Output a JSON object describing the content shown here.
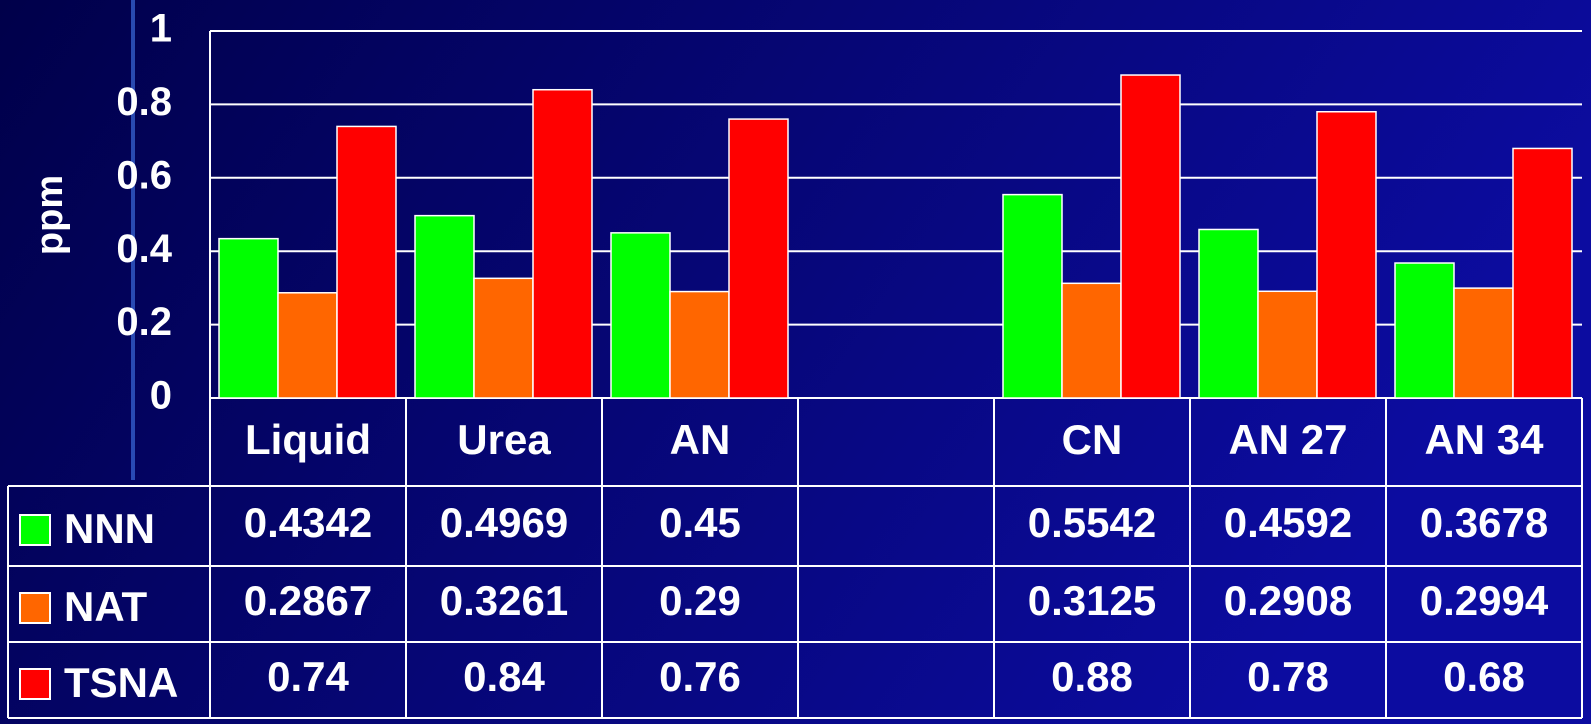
{
  "chart_data": {
    "type": "bar",
    "y_label": "ppm",
    "categories": [
      "Liquid",
      "Urea",
      "AN",
      null,
      "CN",
      "AN 27",
      "AN 34"
    ],
    "series": [
      {
        "name": "NNN",
        "color": "#00ff00",
        "values": [
          0.4342,
          0.4969,
          0.45,
          null,
          0.5542,
          0.4592,
          0.3678
        ]
      },
      {
        "name": "NAT",
        "color": "#ff6600",
        "values": [
          0.2867,
          0.3261,
          0.29,
          null,
          0.3125,
          0.2908,
          0.2994
        ]
      },
      {
        "name": "TSNA",
        "color": "#ff0000",
        "values": [
          0.74,
          0.84,
          0.76,
          null,
          0.88,
          0.78,
          0.68
        ]
      }
    ],
    "ylim": [
      0,
      1
    ],
    "yticks": [
      0,
      0.2,
      0.4,
      0.6,
      0.8,
      1
    ],
    "grid": true,
    "data_table": true
  }
}
